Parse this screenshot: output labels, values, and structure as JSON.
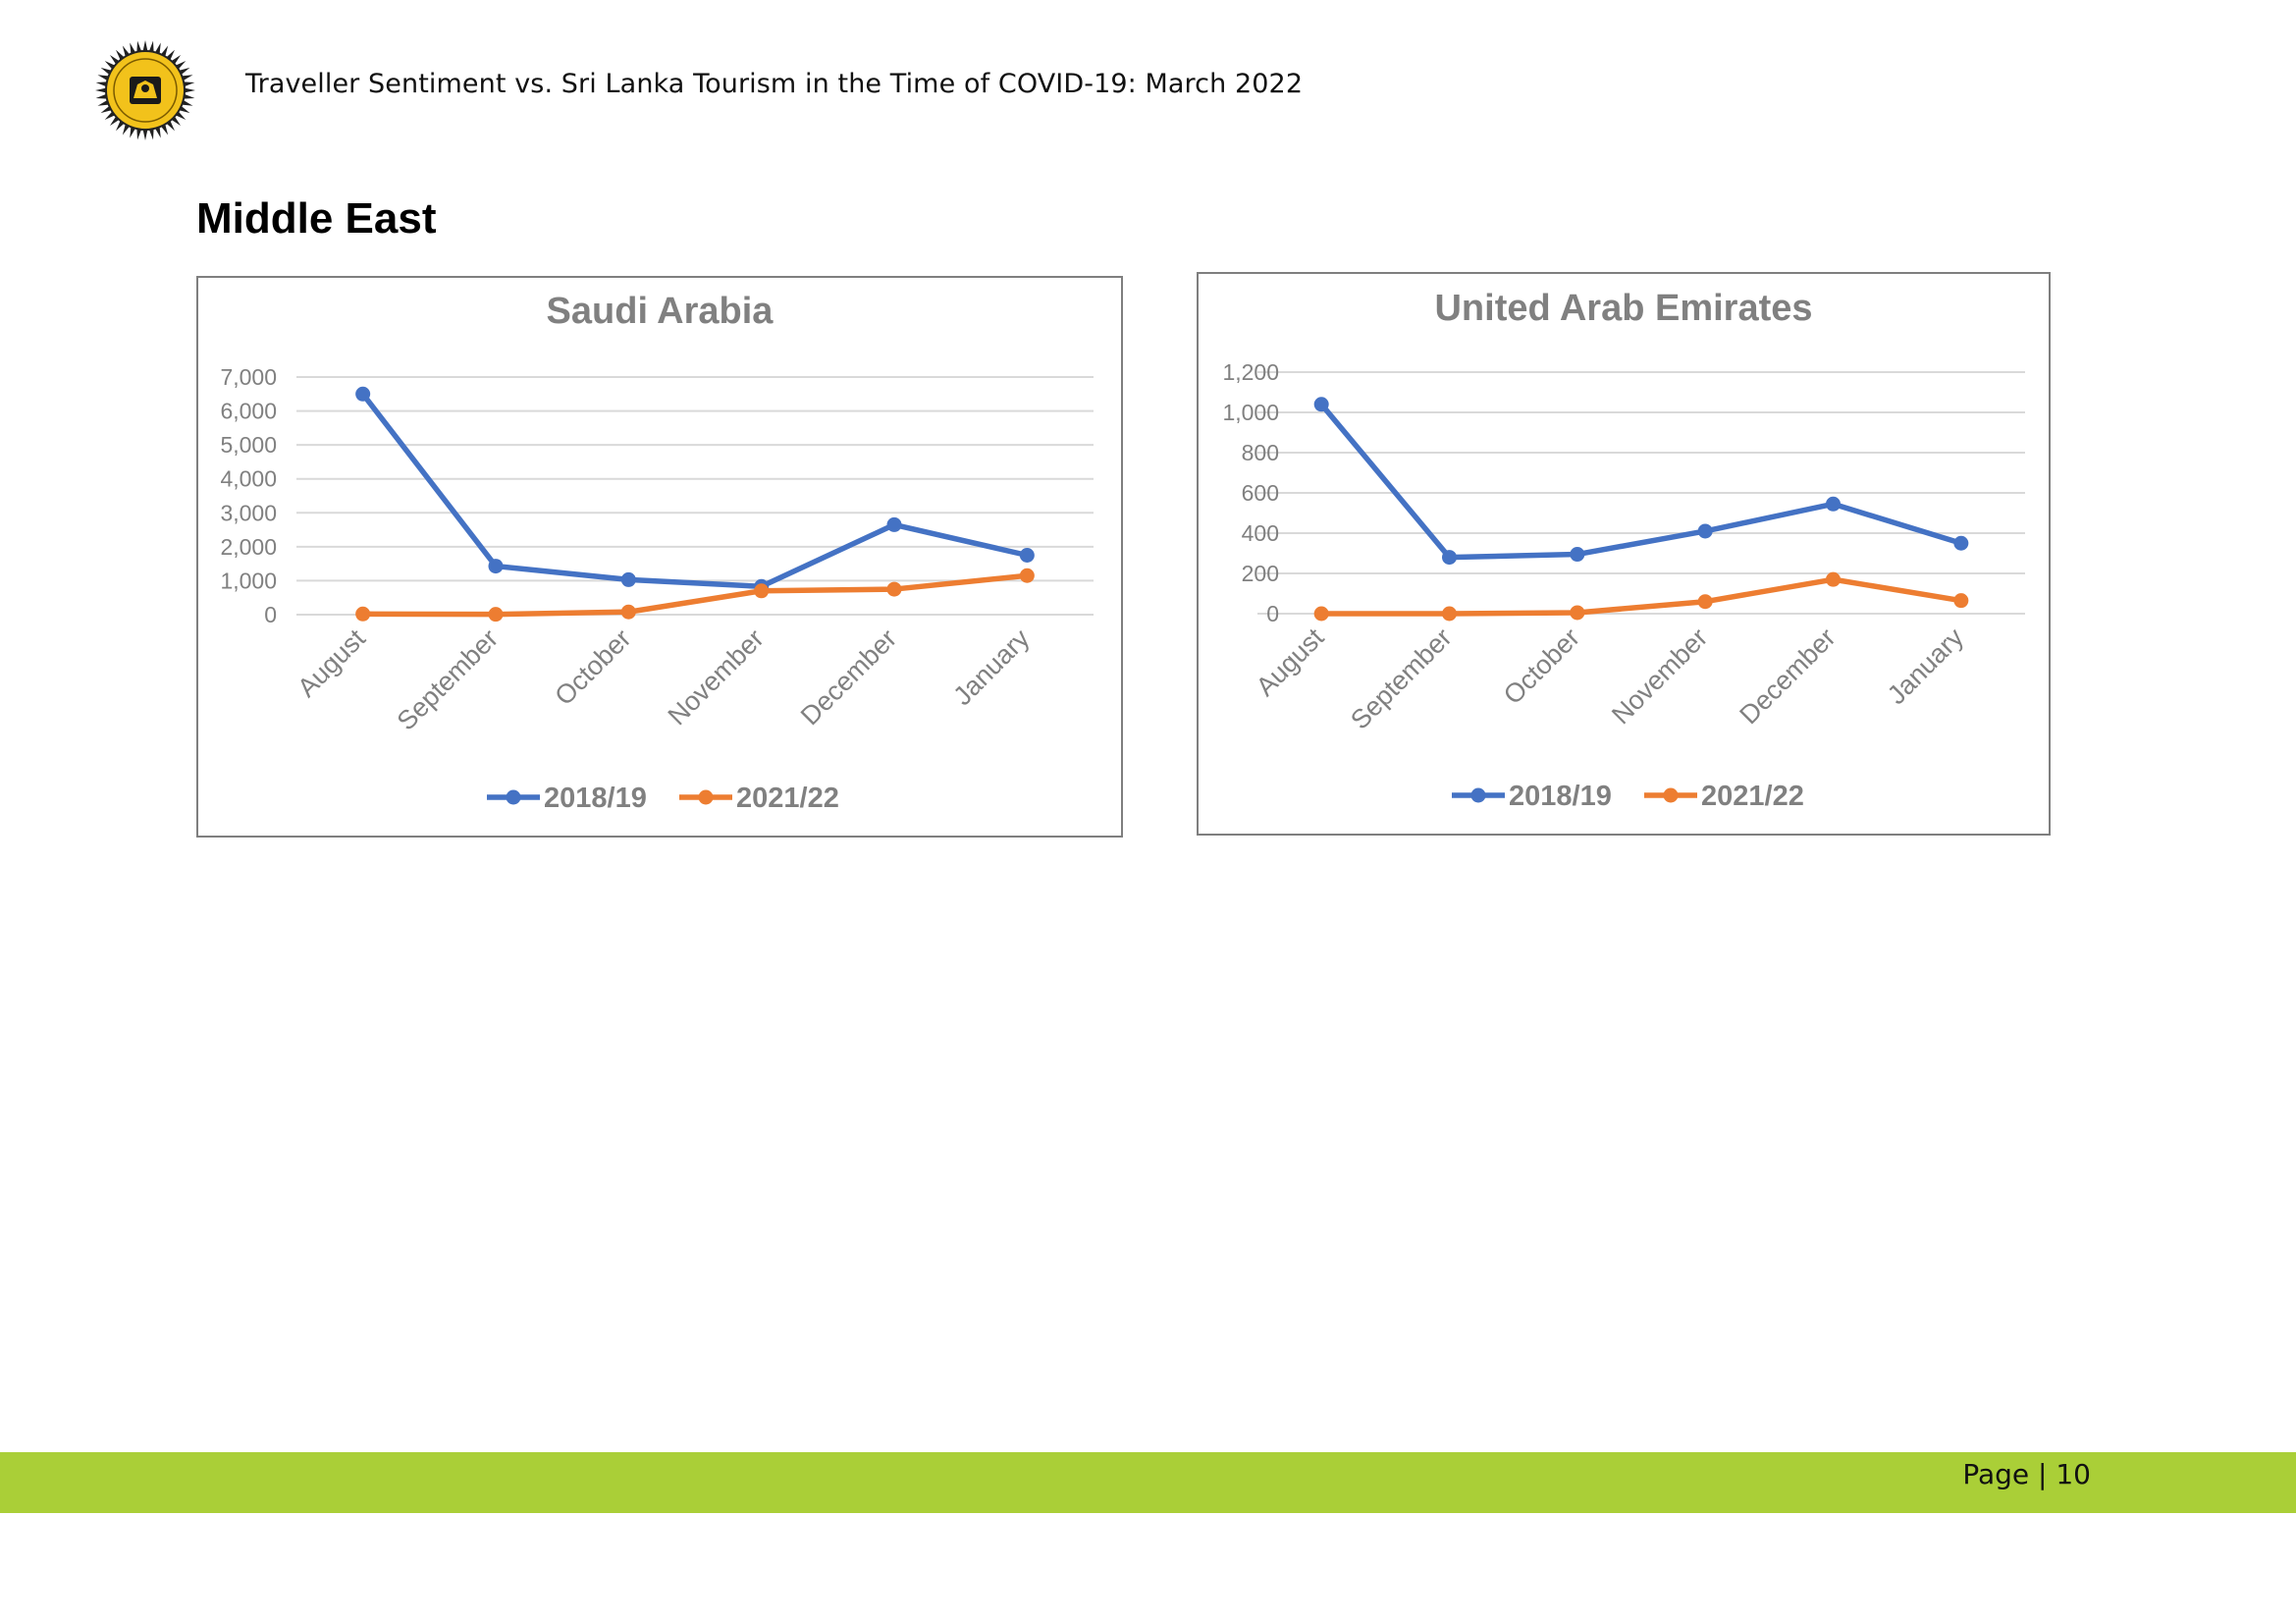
{
  "header": {
    "title": "Traveller Sentiment vs. Sri Lanka Tourism in the Time of COVID-19: March 2022",
    "logo_icon": "sri-lanka-tourism-emblem"
  },
  "section": {
    "heading": "Middle East"
  },
  "footer": {
    "page_label": "Page | 10",
    "bar_color": "#aacf37"
  },
  "chart_data": [
    {
      "id": "saudi-arabia",
      "type": "line",
      "title": "Saudi Arabia",
      "categories": [
        "August",
        "September",
        "October",
        "November",
        "December",
        "January"
      ],
      "series": [
        {
          "name": "2018/19",
          "color": "#4472c4",
          "values": [
            6500,
            1430,
            1030,
            830,
            2650,
            1750
          ]
        },
        {
          "name": "2021/22",
          "color": "#ed7d31",
          "values": [
            20,
            10,
            80,
            700,
            750,
            1150
          ]
        }
      ],
      "ylim": [
        0,
        7000
      ],
      "yticks": [
        0,
        1000,
        2000,
        3000,
        4000,
        5000,
        6000,
        7000
      ],
      "ytick_labels": [
        "0",
        "1,000",
        "2,000",
        "3,000",
        "4,000",
        "5,000",
        "6,000",
        "7,000"
      ],
      "grid": true,
      "legend": "bottom"
    },
    {
      "id": "united-arab-emirates",
      "type": "line",
      "title": "United Arab Emirates",
      "categories": [
        "August",
        "September",
        "October",
        "November",
        "December",
        "January"
      ],
      "series": [
        {
          "name": "2018/19",
          "color": "#4472c4",
          "values": [
            1040,
            280,
            295,
            410,
            545,
            350
          ]
        },
        {
          "name": "2021/22",
          "color": "#ed7d31",
          "values": [
            0,
            0,
            5,
            60,
            170,
            65
          ]
        }
      ],
      "ylim": [
        0,
        1200
      ],
      "yticks": [
        0,
        200,
        400,
        600,
        800,
        1000,
        1200
      ],
      "ytick_labels": [
        "0",
        "200",
        "400",
        "600",
        "800",
        "1,000",
        "1,200"
      ],
      "grid": true,
      "legend": "bottom"
    }
  ]
}
